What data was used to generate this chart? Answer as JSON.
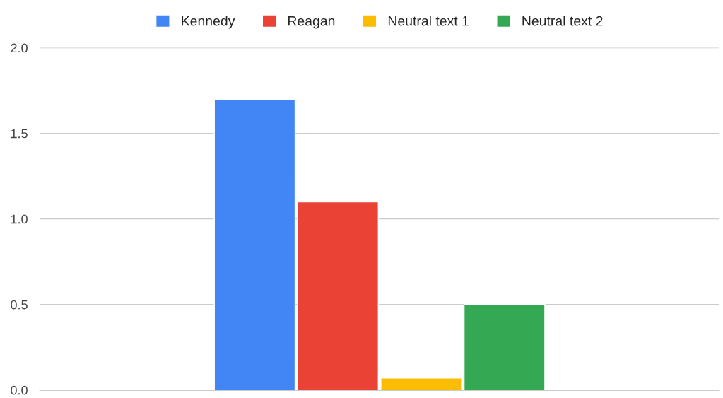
{
  "chart_data": {
    "type": "bar",
    "categories": [
      null
    ],
    "series": [
      {
        "name": "Kennedy",
        "color": "#4285f4",
        "values": [
          1.7
        ]
      },
      {
        "name": "Reagan",
        "color": "#ea4335",
        "values": [
          1.1
        ]
      },
      {
        "name": "Neutral text 1",
        "color": "#fbbc04",
        "values": [
          0.07
        ]
      },
      {
        "name": "Neutral text 2",
        "color": "#34a853",
        "values": [
          0.5
        ]
      }
    ],
    "ylim": [
      0,
      2.0
    ],
    "yticks": [
      {
        "value": 0,
        "label": "0.0"
      },
      {
        "value": 0.5,
        "label": "0.5"
      },
      {
        "value": 1.0,
        "label": "1.0"
      },
      {
        "value": 1.5,
        "label": "1.5"
      },
      {
        "value": 2.0,
        "label": "2.0"
      }
    ],
    "grid": "y",
    "legend": "top"
  }
}
